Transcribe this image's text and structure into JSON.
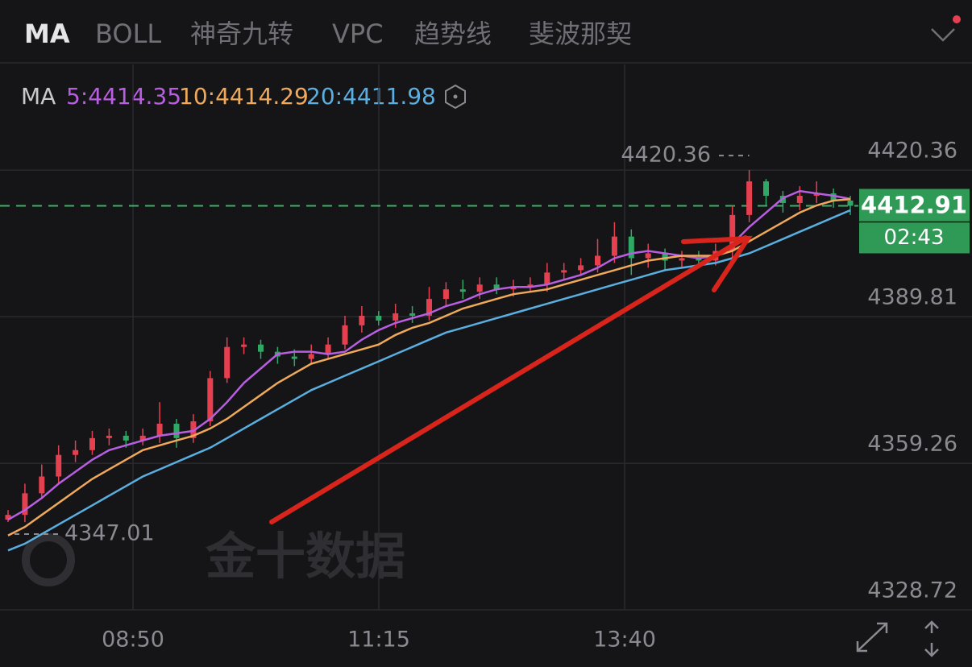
{
  "tabs": [
    "MA",
    "BOLL",
    "神奇九转",
    "VPC",
    "趋势线",
    "斐波那契"
  ],
  "chart_data": {
    "type": "candlestick",
    "indicator": "MA",
    "watermark": "金十数据",
    "ylim": [
      4328.72,
      4442.37
    ],
    "yticks": [
      4420.36,
      4389.81,
      4359.26,
      4328.72
    ],
    "xticks": [
      "08:50",
      "11:15",
      "13:40"
    ],
    "grid": true,
    "up_color": "#e5404f",
    "down_color": "#2fa865",
    "high_marker": 4420.36,
    "low_marker": 4347.01,
    "last_price": 4412.91,
    "countdown": "02:43",
    "open": [
      4347.5,
      4348.5,
      4353.0,
      4356.5,
      4361.0,
      4362.0,
      4364.5,
      4365.0,
      4364.0,
      4365.0,
      4367.5,
      4364.5,
      4368.0,
      4377.0,
      4383.5,
      4384.0,
      4382.5,
      4381.5,
      4381.0,
      4382.0,
      4384.0,
      4388.0,
      4390.0,
      4389.0,
      4390.5,
      4390.0,
      4393.5,
      4395.5,
      4395.0,
      4396.5,
      4395.5,
      4396.0,
      4396.5,
      4399.0,
      4399.5,
      4400.5,
      4402.5,
      4406.5,
      4402.0,
      4403.0,
      4401.5,
      4402.0,
      4401.5,
      4403.5,
      4411.0,
      4418.0,
      4415.0,
      4413.5,
      4415.0,
      4415.5,
      4414.0
    ],
    "high": [
      4349.5,
      4355,
      4359,
      4363,
      4364,
      4366,
      4366.5,
      4366,
      4366.5,
      4372,
      4368.5,
      4369.5,
      4378.5,
      4385.5,
      4385.5,
      4385,
      4383.5,
      4383,
      4384,
      4385.5,
      4390,
      4392,
      4391,
      4392.5,
      4392,
      4396,
      4397,
      4397.5,
      4398,
      4398,
      4397.5,
      4398,
      4401,
      4401,
      4402,
      4406,
      4409.5,
      4408,
      4405,
      4404,
      4403.5,
      4403.5,
      4405,
      4413,
      4420.36,
      4418.5,
      4416,
      4417,
      4418,
      4416.5,
      4415
    ],
    "low": [
      4347.01,
      4347,
      4352,
      4355,
      4359.5,
      4361,
      4363,
      4362.5,
      4363,
      4363.5,
      4362.5,
      4363.5,
      4367,
      4376,
      4382,
      4381,
      4380,
      4379.5,
      4380,
      4381,
      4383,
      4386.5,
      4388,
      4387.5,
      4388.5,
      4389,
      4392,
      4393.5,
      4393.5,
      4394.5,
      4394,
      4395,
      4395,
      4397.5,
      4398.5,
      4399,
      4401,
      4398.5,
      4400,
      4399.5,
      4400,
      4400,
      4400.5,
      4402,
      4409.5,
      4413,
      4411.5,
      4412,
      4413.5,
      4412.5,
      4411
    ],
    "close": [
      4348.5,
      4353.0,
      4356.5,
      4361.0,
      4362.0,
      4364.5,
      4365.0,
      4364.0,
      4365.0,
      4367.5,
      4364.5,
      4368.0,
      4377.0,
      4383.5,
      4384.0,
      4382.5,
      4381.5,
      4381.0,
      4382.0,
      4384.0,
      4388.0,
      4390.0,
      4389.0,
      4390.5,
      4390.0,
      4393.5,
      4395.5,
      4395.0,
      4396.5,
      4395.5,
      4396.0,
      4396.5,
      4399.0,
      4399.5,
      4400.5,
      4402.5,
      4406.5,
      4402.0,
      4403.0,
      4401.5,
      4402.0,
      4401.5,
      4403.5,
      4411.0,
      4418.0,
      4415.0,
      4413.5,
      4415.0,
      4415.5,
      4414.0,
      4412.91
    ],
    "series": [
      {
        "name": "5:4414.35",
        "color": "#b85ee0",
        "values": [
          4347.5,
          4349.5,
          4352,
          4355,
          4357.5,
          4360,
          4362,
          4363,
          4364,
          4365,
          4365.5,
          4366,
          4368.5,
          4372,
          4376,
          4379,
          4382,
          4382.5,
          4382.5,
          4382,
          4382.5,
          4385,
          4387,
          4388.5,
          4389.5,
          4390.5,
          4392,
          4393,
          4394.5,
          4395.5,
          4396,
          4396,
          4396.5,
          4397.5,
          4398.5,
          4400,
          4402,
          4403,
          4403.5,
          4403,
          4402.5,
          4402,
          4402.5,
          4405,
          4408.5,
          4411.5,
          4414.5,
          4416,
          4415.5,
          4415,
          4414.35
        ]
      },
      {
        "name": "10:4414.29",
        "color": "#f0a95a",
        "values": [
          4344.2,
          4346,
          4348.5,
          4351,
          4353.5,
          4356,
          4358,
          4360,
          4362,
          4363,
          4364,
          4365,
          4366.5,
          4368.5,
          4371,
          4373.5,
          4376,
          4378,
          4380,
          4381,
          4382,
          4383,
          4384,
          4386,
          4387.5,
          4388.5,
          4390,
          4391.5,
          4392.5,
          4393.5,
          4394.5,
          4395,
          4395.5,
          4396.5,
          4397.5,
          4398.5,
          4399.5,
          4400.5,
          4401.5,
          4402,
          4402.5,
          4402.5,
          4402.5,
          4403.5,
          4405.5,
          4407.5,
          4409.5,
          4411.5,
          4413,
          4414,
          4414.29
        ]
      },
      {
        "name": "20:4411.98",
        "color": "#5aafe0",
        "values": [
          4341.1,
          4342.5,
          4344.5,
          4346.5,
          4348.5,
          4350.5,
          4352.5,
          4354.5,
          4356.5,
          4358,
          4359.5,
          4361,
          4362.5,
          4364.5,
          4366.5,
          4368.5,
          4370.5,
          4372.5,
          4374.5,
          4376,
          4377.5,
          4379,
          4380.5,
          4382,
          4383.5,
          4385,
          4386.5,
          4387.5,
          4388.5,
          4389.5,
          4390.5,
          4391.5,
          4392.5,
          4393.5,
          4394.5,
          4395.5,
          4396.5,
          4397.5,
          4398.5,
          4399.5,
          4400,
          4400.5,
          4401,
          4402,
          4403,
          4404.5,
          4406,
          4407.5,
          4409,
          4410.5,
          4411.98
        ]
      }
    ]
  }
}
